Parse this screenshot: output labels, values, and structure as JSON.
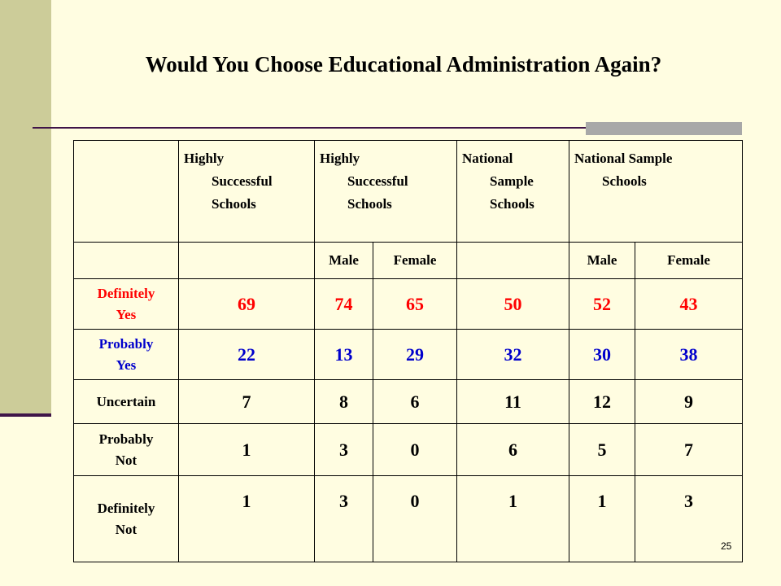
{
  "slide": {
    "title": "Would You Choose Educational Administration Again?",
    "page_number": "25"
  },
  "table": {
    "headers": [
      {
        "line1": "Highly",
        "line2": "Successful",
        "line3": "Schools"
      },
      {
        "line1": "Highly",
        "line2": "Successful",
        "line3": "Schools"
      },
      {
        "line1": "National",
        "line2": "Sample",
        "line3": "Schools"
      },
      {
        "line1": "National Sample",
        "line2": "Schools",
        "line3": ""
      }
    ],
    "subheaders": [
      "",
      "Male",
      "Female",
      "",
      "Male",
      "Female"
    ],
    "rows": [
      {
        "label1": "Definitely",
        "label2": "Yes",
        "values": [
          "69",
          "74",
          "65",
          "50",
          "52",
          "43"
        ]
      },
      {
        "label1": "Probably",
        "label2": "Yes",
        "values": [
          "22",
          "13",
          "29",
          "32",
          "30",
          "38"
        ]
      },
      {
        "label1": "Uncertain",
        "label2": "",
        "values": [
          "7",
          "8",
          "6",
          "11",
          "12",
          "9"
        ]
      },
      {
        "label1": "Probably",
        "label2": "Not",
        "values": [
          "1",
          "3",
          "0",
          "6",
          "5",
          "7"
        ]
      },
      {
        "label1": "Definitely",
        "label2": "Not",
        "values": [
          "1",
          "3",
          "0",
          "1",
          "1",
          "3"
        ]
      }
    ]
  },
  "colors": {
    "background": "#fffde1",
    "sidebar": "#cccc99",
    "accent_line": "#3f1448",
    "definitely_yes": "#ff0000",
    "probably_yes": "#0000cc"
  }
}
